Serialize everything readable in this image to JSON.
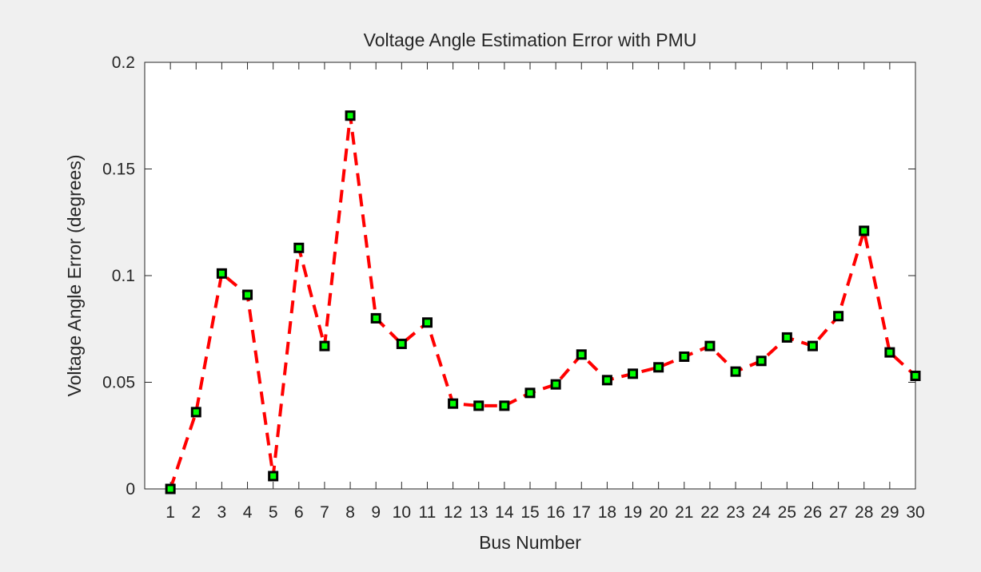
{
  "chart_data": {
    "type": "line",
    "title": "Voltage Angle Estimation Error with PMU",
    "x_label": "Bus Number",
    "y_label": "Voltage Angle Error (degrees)",
    "x": [
      1,
      2,
      3,
      4,
      5,
      6,
      7,
      8,
      9,
      10,
      11,
      12,
      13,
      14,
      15,
      16,
      17,
      18,
      19,
      20,
      21,
      22,
      23,
      24,
      25,
      26,
      27,
      28,
      29,
      30
    ],
    "values": [
      0,
      0.036,
      0.101,
      0.091,
      0.006,
      0.113,
      0.067,
      0.175,
      0.08,
      0.068,
      0.078,
      0.04,
      0.039,
      0.039,
      0.045,
      0.049,
      0.063,
      0.051,
      0.054,
      0.057,
      0.062,
      0.067,
      0.055,
      0.06,
      0.071,
      0.067,
      0.081,
      0.121,
      0.064,
      0.053
    ],
    "line_color": "#ff0000",
    "marker_face": "#00ff00",
    "marker_edge": "#000000",
    "xlim": [
      0,
      30
    ],
    "xticks": [
      1,
      2,
      3,
      4,
      5,
      6,
      7,
      8,
      9,
      10,
      11,
      12,
      13,
      14,
      15,
      16,
      17,
      18,
      19,
      20,
      21,
      22,
      23,
      24,
      25,
      26,
      27,
      28,
      29,
      30
    ],
    "ylim": [
      0,
      0.2
    ],
    "yticks": [
      0,
      0.05,
      0.1,
      0.15,
      0.2
    ],
    "grid": false
  }
}
